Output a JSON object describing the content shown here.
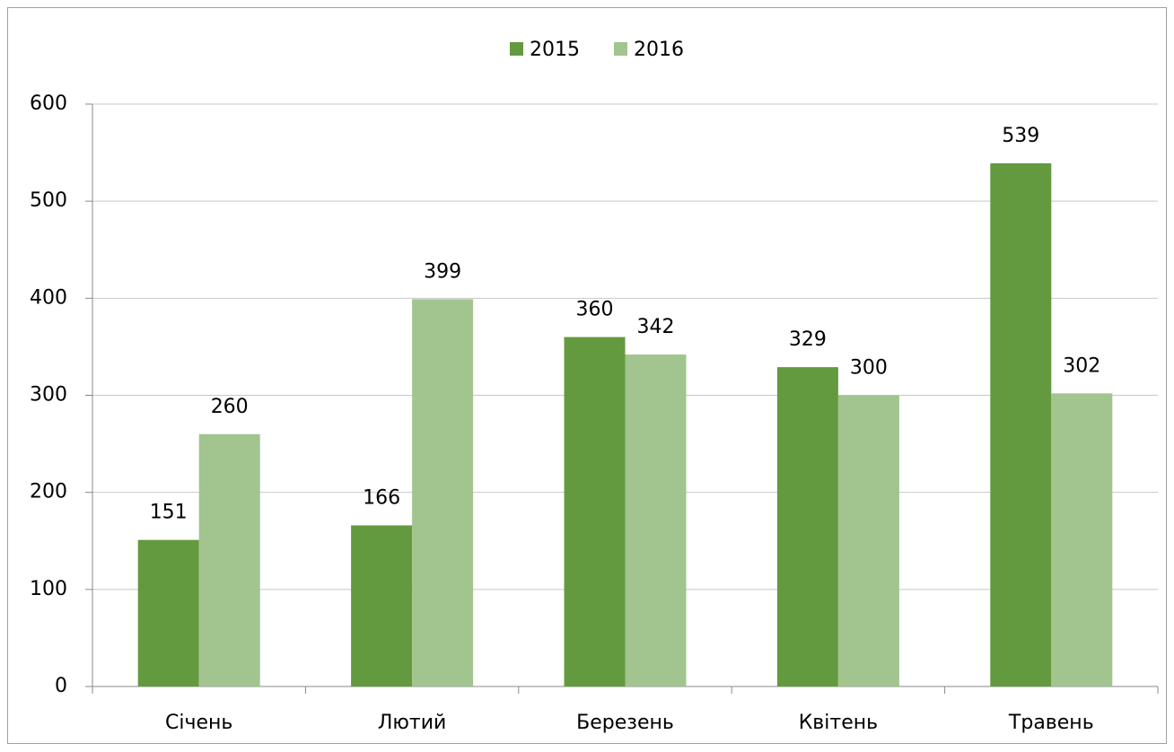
{
  "chart_data": {
    "type": "bar",
    "categories": [
      "Січень",
      "Лютий",
      "Березень",
      "Квітень",
      "Травень"
    ],
    "series": [
      {
        "name": "2015",
        "color": "#649a3f",
        "values": [
          151,
          166,
          360,
          329,
          539
        ]
      },
      {
        "name": "2016",
        "color": "#a2c48e",
        "values": [
          260,
          399,
          342,
          300,
          302
        ]
      }
    ],
    "ylim": [
      0,
      600
    ],
    "yticks": [
      0,
      100,
      200,
      300,
      400,
      500,
      600
    ],
    "grid": true,
    "legend": "top"
  }
}
